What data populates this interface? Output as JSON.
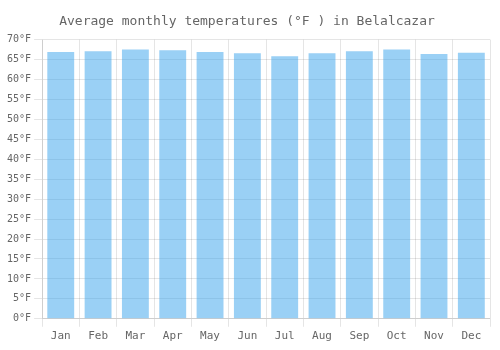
{
  "chart_data": {
    "type": "bar",
    "title": "Average monthly temperatures (°F ) in Belalcazar",
    "categories": [
      "Jan",
      "Feb",
      "Mar",
      "Apr",
      "May",
      "Jun",
      "Jul",
      "Aug",
      "Sep",
      "Oct",
      "Nov",
      "Dec"
    ],
    "values": [
      66.9,
      67.1,
      67.5,
      67.3,
      66.9,
      66.6,
      65.8,
      66.6,
      67.1,
      67.5,
      66.4,
      66.7
    ],
    "ylim": [
      0,
      70
    ],
    "yticks": [
      {
        "value": 0,
        "label": "0°F"
      },
      {
        "value": 5,
        "label": "5°F"
      },
      {
        "value": 10,
        "label": "10°F"
      },
      {
        "value": 15,
        "label": "15°F"
      },
      {
        "value": 20,
        "label": "20°F"
      },
      {
        "value": 25,
        "label": "25°F"
      },
      {
        "value": 30,
        "label": "30°F"
      },
      {
        "value": 35,
        "label": "35°F"
      },
      {
        "value": 40,
        "label": "40°F"
      },
      {
        "value": 45,
        "label": "45°F"
      },
      {
        "value": 50,
        "label": "50°F"
      },
      {
        "value": 55,
        "label": "55°F"
      },
      {
        "value": 60,
        "label": "60°F"
      },
      {
        "value": 65,
        "label": "65°F"
      },
      {
        "value": 70,
        "label": "70°F"
      }
    ],
    "grid": true
  }
}
